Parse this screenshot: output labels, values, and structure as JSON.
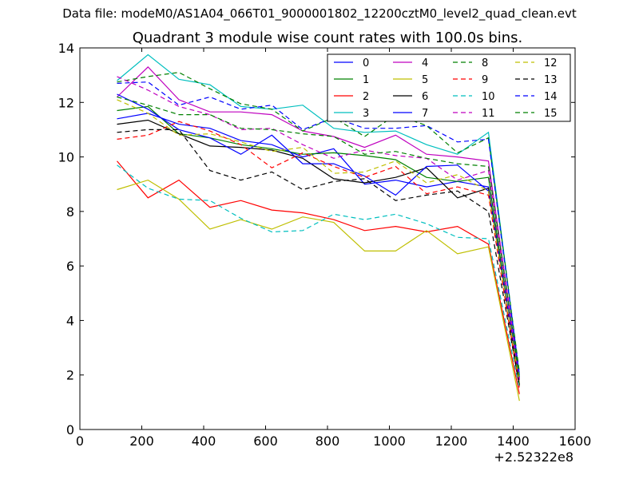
{
  "suptitle": "Data file: modeM0/AS1A04_066T01_9000001802_12200cztM0_level2_quad_clean.evt",
  "chart_data": {
    "type": "line",
    "title": "Quadrant 3 module wise count rates with 100.0s bins.",
    "xlabel": "",
    "ylabel": "",
    "x_offset_label": "+2.52322e8",
    "xlim": [
      0,
      1600
    ],
    "ylim": [
      0,
      14
    ],
    "x_ticks": [
      0,
      200,
      400,
      600,
      800,
      1000,
      1200,
      1400,
      1600
    ],
    "y_ticks": [
      0,
      2,
      4,
      6,
      8,
      10,
      12,
      14
    ],
    "grid": false,
    "legend_position": "top-right",
    "x": [
      120,
      220,
      320,
      420,
      520,
      620,
      720,
      820,
      920,
      1020,
      1120,
      1220,
      1320,
      1420
    ],
    "series": [
      {
        "name": "0",
        "color": "#0000ff",
        "dash": false,
        "values": [
          11.4,
          11.6,
          11.2,
          11.05,
          10.6,
          10.45,
          10.0,
          10.3,
          9.0,
          9.15,
          8.9,
          9.1,
          8.9,
          1.7
        ]
      },
      {
        "name": "1",
        "color": "#008000",
        "dash": false,
        "values": [
          11.7,
          11.85,
          10.85,
          10.7,
          10.45,
          10.3,
          10.1,
          10.15,
          10.05,
          9.9,
          9.25,
          9.1,
          9.25,
          1.6
        ]
      },
      {
        "name": "2",
        "color": "#ff0000",
        "dash": false,
        "values": [
          9.85,
          8.5,
          9.15,
          8.15,
          8.4,
          8.05,
          7.95,
          7.7,
          7.3,
          7.45,
          7.25,
          7.45,
          6.8,
          1.3
        ]
      },
      {
        "name": "3",
        "color": "#00bfbf",
        "dash": false,
        "values": [
          12.8,
          13.75,
          12.85,
          12.65,
          11.85,
          11.75,
          11.9,
          11.05,
          10.9,
          10.95,
          10.45,
          10.1,
          10.9,
          2.0
        ]
      },
      {
        "name": "4",
        "color": "#bf00bf",
        "dash": false,
        "values": [
          12.2,
          13.3,
          12.1,
          11.65,
          11.65,
          11.55,
          10.95,
          10.75,
          10.35,
          10.8,
          10.1,
          10.0,
          9.85,
          1.9
        ]
      },
      {
        "name": "5",
        "color": "#bfbf00",
        "dash": false,
        "values": [
          8.8,
          9.15,
          8.45,
          7.35,
          7.7,
          7.35,
          7.8,
          7.6,
          6.55,
          6.55,
          7.3,
          6.45,
          6.7,
          1.05
        ]
      },
      {
        "name": "6",
        "color": "#000000",
        "dash": false,
        "values": [
          11.2,
          11.35,
          10.85,
          10.4,
          10.35,
          10.25,
          9.95,
          9.2,
          9.05,
          9.25,
          9.6,
          8.5,
          8.85,
          1.65
        ]
      },
      {
        "name": "7",
        "color": "#0000ff",
        "dash": false,
        "values": [
          12.3,
          11.75,
          11.0,
          10.7,
          10.1,
          10.8,
          9.75,
          9.75,
          9.3,
          8.6,
          9.65,
          9.7,
          8.75,
          1.85
        ]
      },
      {
        "name": "8",
        "color": "#008000",
        "dash": true,
        "values": [
          12.75,
          12.95,
          13.1,
          12.5,
          11.95,
          11.75,
          10.95,
          11.45,
          10.75,
          11.55,
          11.15,
          10.15,
          10.7,
          2.1
        ]
      },
      {
        "name": "9",
        "color": "#ff0000",
        "dash": true,
        "values": [
          10.65,
          10.8,
          11.3,
          10.95,
          10.45,
          9.6,
          10.15,
          9.65,
          9.25,
          9.65,
          8.65,
          8.9,
          8.6,
          1.5
        ]
      },
      {
        "name": "10",
        "color": "#00bfbf",
        "dash": true,
        "values": [
          9.7,
          8.85,
          8.45,
          8.4,
          7.75,
          7.25,
          7.3,
          7.9,
          7.7,
          7.9,
          7.55,
          7.05,
          7.0,
          1.5
        ]
      },
      {
        "name": "11",
        "color": "#bf00bf",
        "dash": true,
        "values": [
          12.95,
          12.45,
          11.85,
          11.55,
          11.0,
          11.05,
          10.45,
          9.95,
          10.25,
          10.05,
          9.95,
          9.15,
          9.5,
          1.8
        ]
      },
      {
        "name": "12",
        "color": "#bfbf00",
        "dash": true,
        "values": [
          12.1,
          11.6,
          10.8,
          10.85,
          10.55,
          10.2,
          10.35,
          9.4,
          9.45,
          9.85,
          9.05,
          9.35,
          8.75,
          1.7
        ]
      },
      {
        "name": "13",
        "color": "#000000",
        "dash": true,
        "values": [
          10.9,
          11.0,
          11.0,
          9.5,
          9.15,
          9.45,
          8.8,
          9.1,
          9.2,
          8.4,
          8.6,
          8.75,
          8.0,
          1.6
        ]
      },
      {
        "name": "14",
        "color": "#0000ff",
        "dash": true,
        "values": [
          12.7,
          12.75,
          11.9,
          12.2,
          11.75,
          11.9,
          11.0,
          11.45,
          11.05,
          11.05,
          11.15,
          10.55,
          10.65,
          2.0
        ]
      },
      {
        "name": "15",
        "color": "#008000",
        "dash": true,
        "values": [
          12.2,
          11.9,
          11.55,
          11.55,
          11.05,
          11.0,
          10.85,
          10.75,
          10.1,
          10.2,
          9.95,
          9.75,
          9.65,
          1.9
        ]
      }
    ]
  }
}
